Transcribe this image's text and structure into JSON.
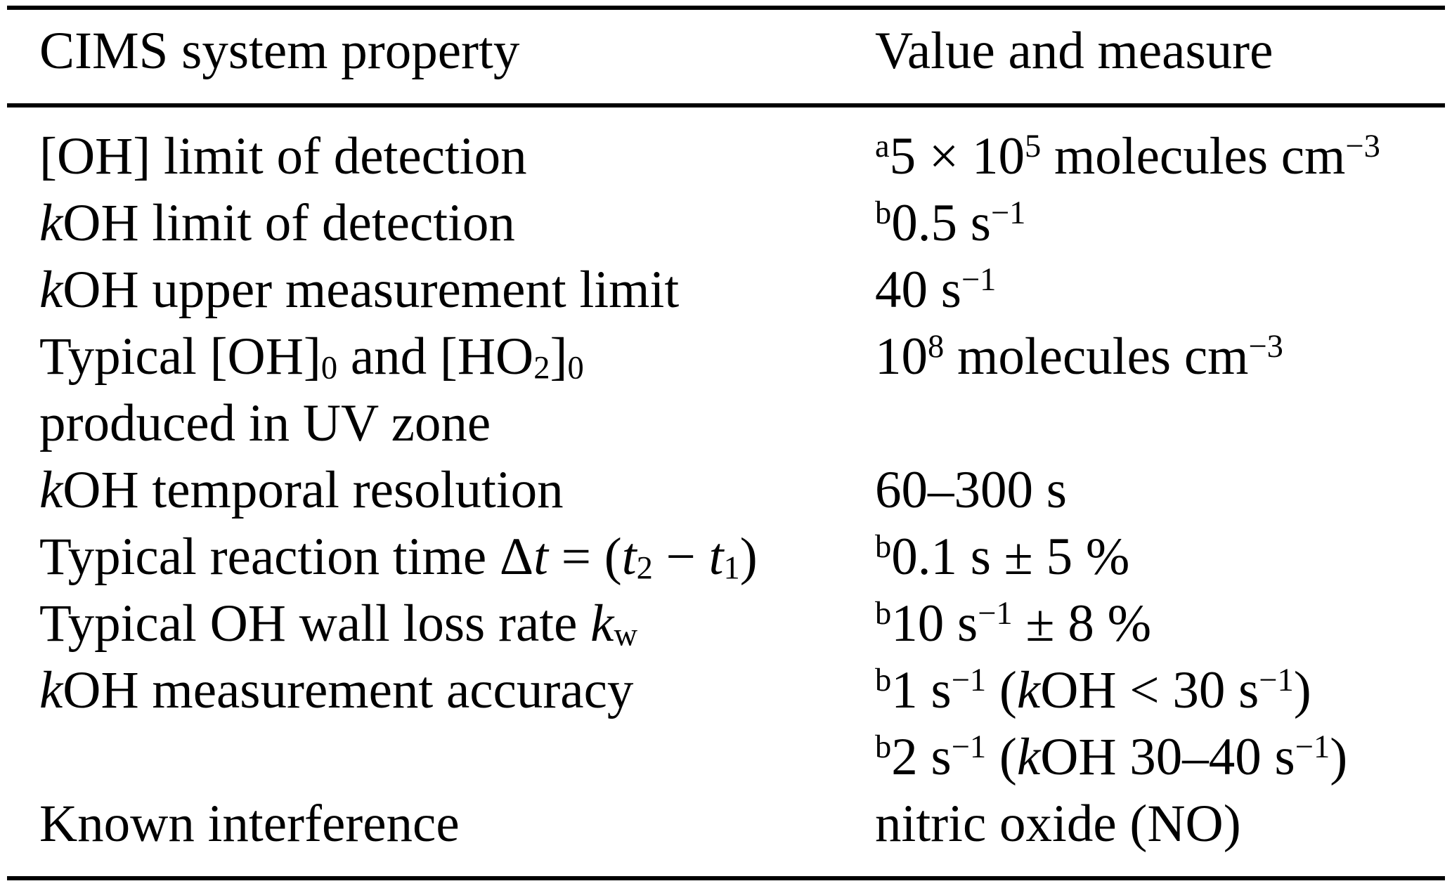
{
  "table": {
    "header": {
      "property": "CIMS system property",
      "value": "Value and measure"
    },
    "rows": [
      {
        "property": "[OH] limit of detection",
        "value": "^{a}5 × 10^{5} molecules cm^{−3}"
      },
      {
        "property": "*k*OH limit of detection",
        "value": "^{b}0.5 s^{−1}"
      },
      {
        "property": "*k*OH upper measurement limit",
        "value": "40 s^{−1}"
      },
      {
        "property": "Typical [OH]_{0} and [HO_{2}]_{0}\nproduced in UV zone",
        "value": "10^{8} molecules cm^{−3}"
      },
      {
        "property": "*k*OH temporal resolution",
        "value": "60–300 s"
      },
      {
        "property": "Typical reaction time Δ*t* = (*t*_{2} − *t*_{1})",
        "value": "^{b}0.1 s ± 5 %"
      },
      {
        "property": "Typical OH wall loss rate *k*_{w}",
        "value": "^{b}10 s^{−1} ± 8 %"
      },
      {
        "property": "*k*OH measurement accuracy",
        "value": "^{b}1 s^{−1} (*k*OH < 30 s^{−1})\n^{b}2 s^{−1} (*k*OH 30–40 s^{−1})"
      },
      {
        "property": "Known interference",
        "value": "nitric oxide (NO)"
      }
    ]
  }
}
